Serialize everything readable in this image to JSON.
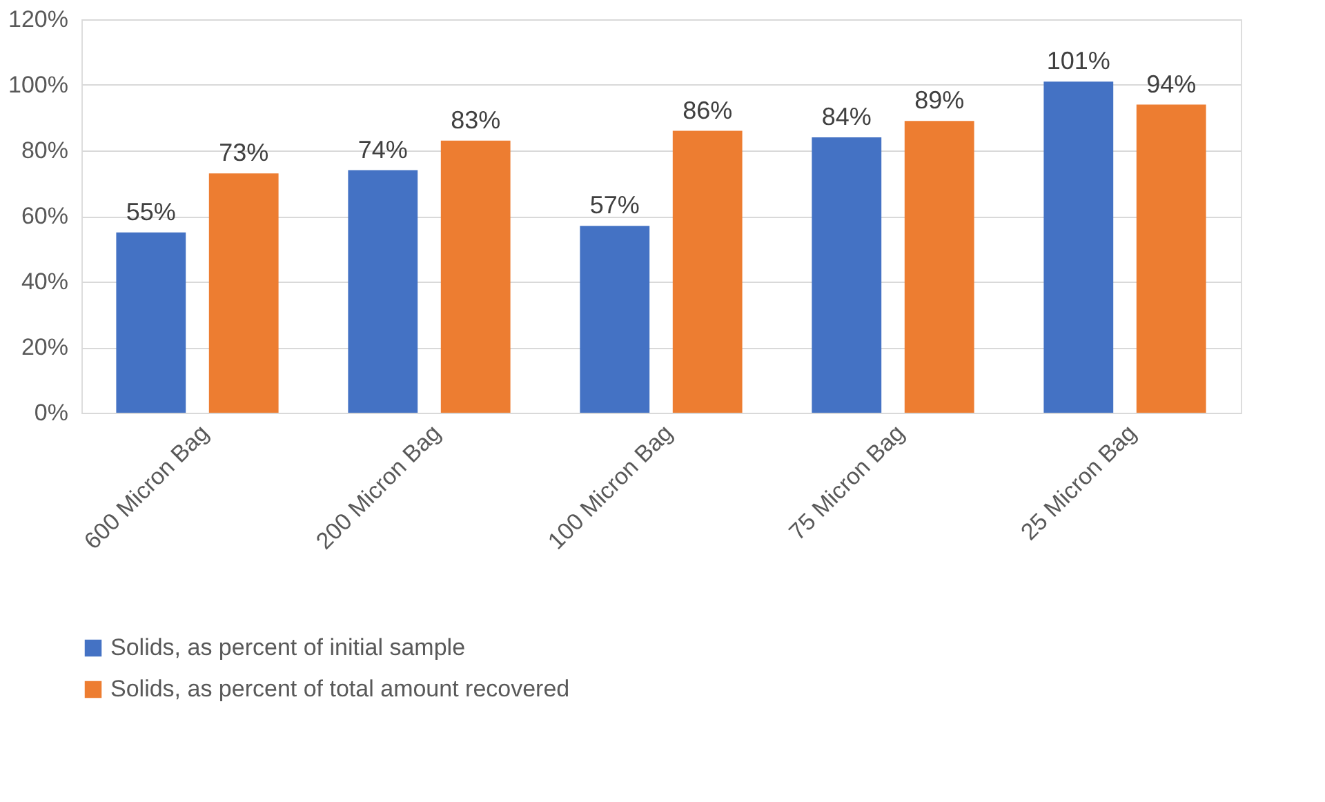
{
  "chart_data": {
    "type": "bar",
    "categories": [
      "600 Micron Bag",
      "200 Micron Bag",
      "100 Micron Bag",
      "75 Micron Bag",
      "25 Micron Bag"
    ],
    "series": [
      {
        "name": "Solids, as percent of initial sample",
        "color": "#4472c4",
        "values": [
          55,
          74,
          57,
          84,
          101
        ],
        "value_labels": [
          "55%",
          "74%",
          "57%",
          "84%",
          "101%"
        ]
      },
      {
        "name": "Solids, as percent of total amount recovered",
        "color": "#ed7d31",
        "values": [
          73,
          83,
          86,
          89,
          94
        ],
        "value_labels": [
          "73%",
          "83%",
          "86%",
          "89%",
          "94%"
        ]
      }
    ],
    "ylim": [
      0,
      120
    ],
    "yticks": [
      {
        "value": 0,
        "label": "0%"
      },
      {
        "value": 20,
        "label": "20%"
      },
      {
        "value": 40,
        "label": "40%"
      },
      {
        "value": 60,
        "label": "60%"
      },
      {
        "value": 80,
        "label": "80%"
      },
      {
        "value": 100,
        "label": "100%"
      },
      {
        "value": 120,
        "label": "120%"
      }
    ],
    "grid": "y",
    "legend": "bottom"
  }
}
